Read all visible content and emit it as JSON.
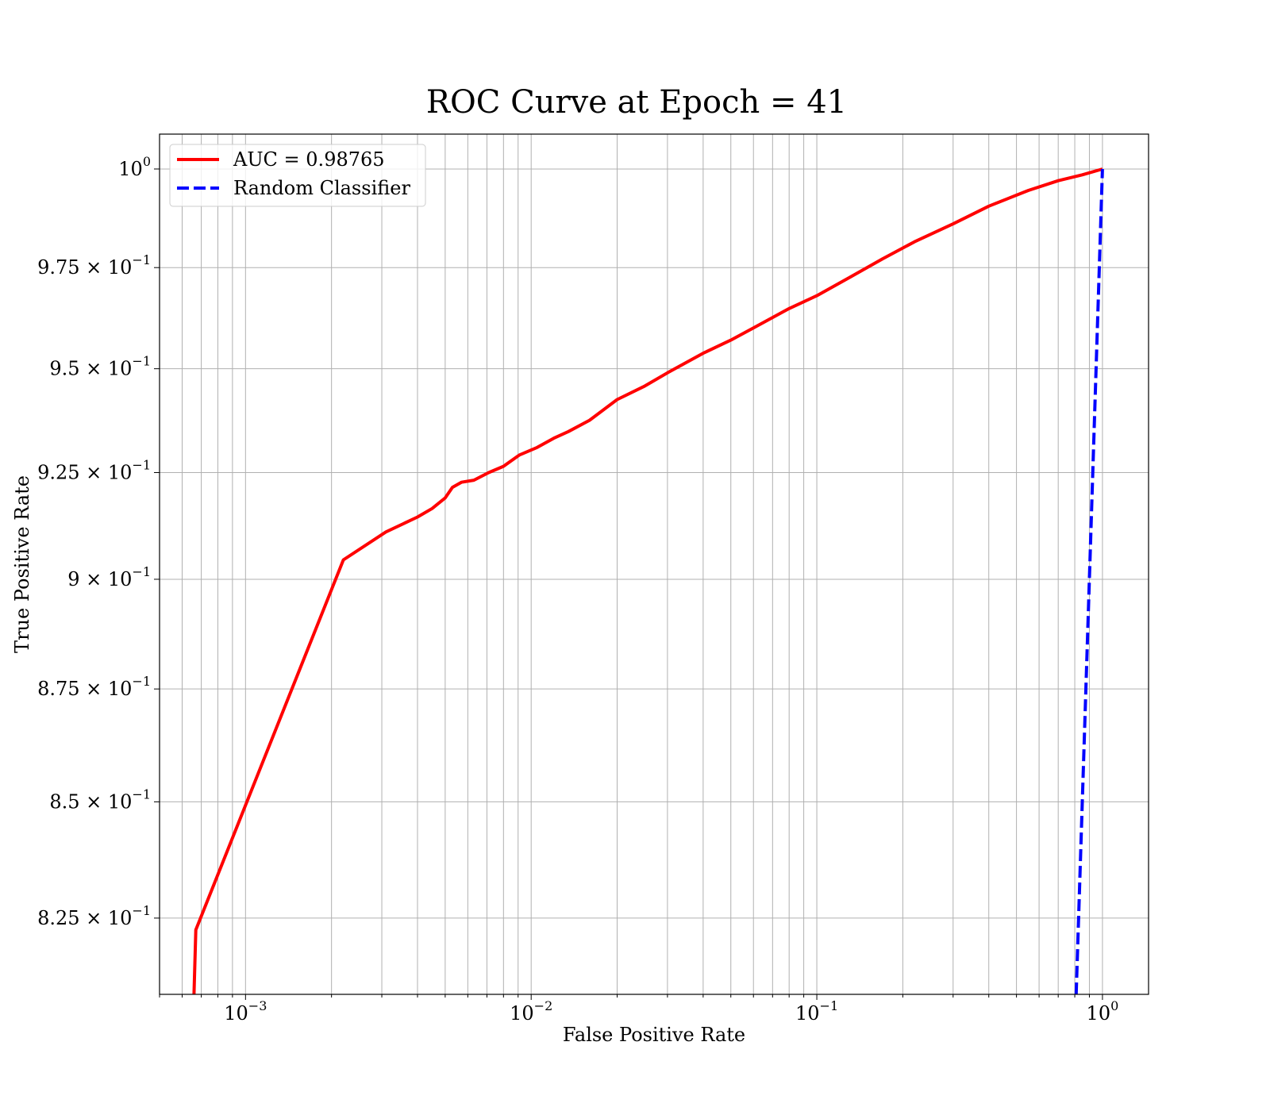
{
  "chart_data": {
    "type": "line",
    "title": "ROC Curve at Epoch = 41",
    "xlabel": "False Positive Rate",
    "ylabel": "True Positive Rate",
    "xscale": "log",
    "yscale": "log",
    "xlim": [
      0.0005,
      1.45
    ],
    "ylim": [
      0.809,
      1.009
    ],
    "grid": true,
    "legend_position": "top-left",
    "x_ticks": [
      {
        "value": 0.001,
        "base": "10",
        "exp": "−3"
      },
      {
        "value": 0.01,
        "base": "10",
        "exp": "−2"
      },
      {
        "value": 0.1,
        "base": "10",
        "exp": "−1"
      },
      {
        "value": 1,
        "base": "10",
        "exp": "0"
      }
    ],
    "y_ticks": [
      {
        "value": 0.825,
        "mant": "8.25",
        "base": " × 10",
        "exp": "−1"
      },
      {
        "value": 0.85,
        "mant": "8.5",
        "base": " × 10",
        "exp": "−1"
      },
      {
        "value": 0.875,
        "mant": "8.75",
        "base": " × 10",
        "exp": "−1"
      },
      {
        "value": 0.9,
        "mant": "9",
        "base": " × 10",
        "exp": "−1"
      },
      {
        "value": 0.925,
        "mant": "9.25",
        "base": " × 10",
        "exp": "−1"
      },
      {
        "value": 0.95,
        "mant": "9.5",
        "base": " × 10",
        "exp": "−1"
      },
      {
        "value": 0.975,
        "mant": "9.75",
        "base": " × 10",
        "exp": "−1"
      },
      {
        "value": 1.0,
        "mant": "",
        "base": "10",
        "exp": "0"
      }
    ],
    "series": [
      {
        "name": "AUC = 0.98765",
        "color": "#ff0000",
        "style": "solid",
        "x": [
          0.00066,
          0.00067,
          0.0022,
          0.0031,
          0.004,
          0.0045,
          0.005,
          0.0053,
          0.0057,
          0.0063,
          0.0071,
          0.008,
          0.0091,
          0.0105,
          0.012,
          0.0135,
          0.016,
          0.02,
          0.025,
          0.03,
          0.04,
          0.05,
          0.06,
          0.08,
          0.1,
          0.13,
          0.17,
          0.22,
          0.3,
          0.4,
          0.55,
          0.7,
          0.85,
          1.0
        ],
        "y": [
          0.809,
          0.8225,
          0.9045,
          0.911,
          0.9145,
          0.9165,
          0.919,
          0.9215,
          0.9227,
          0.9232,
          0.925,
          0.9265,
          0.9292,
          0.931,
          0.9332,
          0.9348,
          0.9375,
          0.9425,
          0.9458,
          0.949,
          0.9538,
          0.957,
          0.96,
          0.9648,
          0.968,
          0.9725,
          0.9772,
          0.9815,
          0.986,
          0.9905,
          0.9945,
          0.997,
          0.9985,
          1.0
        ]
      },
      {
        "name": "Random Classifier",
        "color": "#0000ff",
        "style": "dashed",
        "x": [
          0.809,
          1.0
        ],
        "y": [
          0.809,
          1.0
        ]
      }
    ]
  }
}
